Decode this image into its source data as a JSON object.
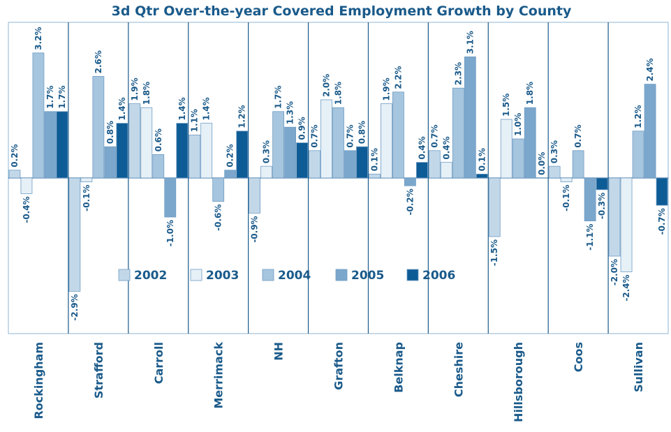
{
  "chart_data": {
    "type": "bar",
    "title": "3d Qtr Over-the-year Covered Employment Growth by County",
    "categories": [
      "Rockingham",
      "Strafford",
      "Carroll",
      "Merrimack",
      "NH",
      "Grafton",
      "Belknap",
      "Cheshire",
      "Hillsborough",
      "Coos",
      "Sullivan"
    ],
    "series": [
      {
        "name": "2002",
        "color": "#c2d8e9",
        "values": [
          0.2,
          -2.9,
          1.9,
          1.1,
          -0.9,
          0.7,
          0.1,
          0.7,
          -1.5,
          0.3,
          -2.0
        ]
      },
      {
        "name": "2003",
        "color": "#e6f0f7",
        "values": [
          -0.4,
          -0.1,
          1.8,
          1.4,
          0.3,
          2.0,
          1.9,
          0.4,
          1.5,
          -0.1,
          -2.4
        ]
      },
      {
        "name": "2004",
        "color": "#a6c5de",
        "values": [
          3.2,
          2.6,
          0.6,
          -0.6,
          1.7,
          1.8,
          2.2,
          2.3,
          1.0,
          0.7,
          1.2
        ]
      },
      {
        "name": "2005",
        "color": "#7ba7cc",
        "values": [
          1.7,
          0.8,
          -1.0,
          0.2,
          1.3,
          0.7,
          -0.2,
          3.1,
          1.8,
          -1.1,
          2.4
        ]
      },
      {
        "name": "2006",
        "color": "#0e5c96",
        "values": [
          1.7,
          1.4,
          1.4,
          1.2,
          0.9,
          0.8,
          0.4,
          0.1,
          0.0,
          -0.3,
          -0.7
        ]
      }
    ],
    "data_labels": {
      "2002": [
        "0.2%",
        "-2.9%",
        "1.9%",
        "1.1%",
        "-0.9%",
        "0.7%",
        "0.1%",
        "0.7%",
        "-1.5%",
        "0.3%",
        "-2.0%"
      ],
      "2003": [
        "-0.4%",
        "-0.1%",
        "1.8%",
        "1.4%",
        "0.3%",
        "2.0%",
        "1.9%",
        "0.4%",
        "1.5%",
        "-0.1%",
        "-2.4%"
      ],
      "2004": [
        "3.2%",
        "2.6%",
        "0.6%",
        "-0.6%",
        "1.7%",
        "1.8%",
        "2.2%",
        "2.3%",
        "1.0%",
        "0.7%",
        "1.2%"
      ],
      "2005": [
        "1.7%",
        "0.8%",
        "-1.0%",
        "0.2%",
        "1.3%",
        "0.7%",
        "-0.2%",
        "3.1%",
        "1.8%",
        "-1.1%",
        "2.4%"
      ],
      "2006": [
        "1.7%",
        "1.4%",
        "1.4%",
        "1.2%",
        "0.9%",
        "0.8%",
        "0.4%",
        "0.1%",
        "0.0%",
        "-0.3%",
        "-0.7%"
      ]
    },
    "ylim": [
      -4.0,
      4.3
    ],
    "grid": false,
    "legend": "center",
    "xlabel": "",
    "ylabel": ""
  },
  "colors": {
    "text": "#1a5a8a",
    "axis": "#1a5a8a",
    "border": "#8fb4d3"
  }
}
